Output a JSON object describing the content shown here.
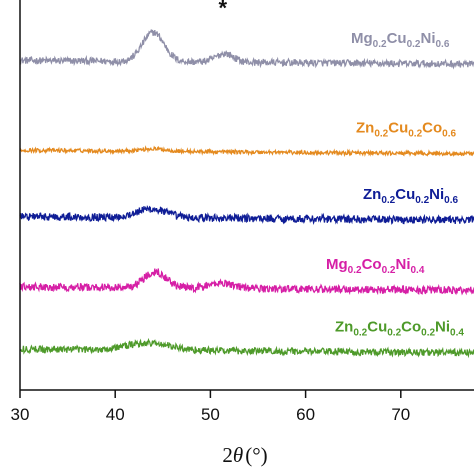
{
  "chart_data": {
    "type": "line",
    "xlabel_prefix": "2",
    "xlabel_var": "θ",
    "xlabel_unit": "(°)",
    "ylabel": "",
    "xlim": [
      30,
      80
    ],
    "ylim": [
      0,
      100
    ],
    "x_ticks": [
      "30",
      "40",
      "50",
      "60",
      "70"
    ],
    "annotation": {
      "text": "*",
      "x": 51.3,
      "y": 96
    },
    "series": [
      {
        "name_parts": [
          [
            "Mg",
            ""
          ],
          [
            "0.2",
            "sub"
          ],
          [
            "Cu",
            ""
          ],
          [
            "0.2",
            "sub"
          ],
          [
            "Ni",
            ""
          ],
          [
            "0.6",
            "sub"
          ]
        ],
        "color": "#8f8fa8",
        "baseline": 84.5,
        "noise": 0.9,
        "peaks": [
          {
            "x": 44.0,
            "height": 7.5,
            "width": 1.6
          },
          {
            "x": 51.5,
            "height": 2.2,
            "width": 1.3
          }
        ]
      },
      {
        "name_parts": [
          [
            "Zn",
            ""
          ],
          [
            "0.2",
            "sub"
          ],
          [
            "Cu",
            ""
          ],
          [
            "0.2",
            "sub"
          ],
          [
            "Co",
            ""
          ],
          [
            "0.6",
            "sub"
          ]
        ],
        "color": "#e48a1f",
        "baseline": 61.5,
        "noise": 0.5,
        "peaks": [
          {
            "x": 44.0,
            "height": 0.6,
            "width": 2.0
          }
        ]
      },
      {
        "name_parts": [
          [
            "Zn",
            ""
          ],
          [
            "0.2",
            "sub"
          ],
          [
            "Cu",
            ""
          ],
          [
            "0.2",
            "sub"
          ],
          [
            "Ni",
            ""
          ],
          [
            "0.6",
            "sub"
          ]
        ],
        "color": "#0f1d96",
        "baseline": 44.5,
        "noise": 1.0,
        "peaks": [
          {
            "x": 43.8,
            "height": 2.2,
            "width": 2.2
          }
        ]
      },
      {
        "name_parts": [
          [
            "Mg",
            ""
          ],
          [
            "0.2",
            "sub"
          ],
          [
            "Co",
            ""
          ],
          [
            "0.2",
            "sub"
          ],
          [
            "Ni",
            ""
          ],
          [
            "0.4",
            "sub"
          ]
        ],
        "color": "#d61fa6",
        "baseline": 26.5,
        "noise": 1.0,
        "peaks": [
          {
            "x": 44.2,
            "height": 4.2,
            "width": 1.6
          },
          {
            "x": 51.2,
            "height": 1.4,
            "width": 1.8
          }
        ]
      },
      {
        "name_parts": [
          [
            "Zn",
            ""
          ],
          [
            "0.2",
            "sub"
          ],
          [
            "Cu",
            ""
          ],
          [
            "0.2",
            "sub"
          ],
          [
            "Co",
            ""
          ],
          [
            "0.2",
            "sub"
          ],
          [
            "Ni",
            ""
          ],
          [
            "0.4",
            "sub"
          ]
        ],
        "color": "#4e9a2a",
        "baseline": 10.5,
        "noise": 0.9,
        "peaks": [
          {
            "x": 43.5,
            "height": 1.8,
            "width": 3.2
          }
        ]
      }
    ]
  }
}
